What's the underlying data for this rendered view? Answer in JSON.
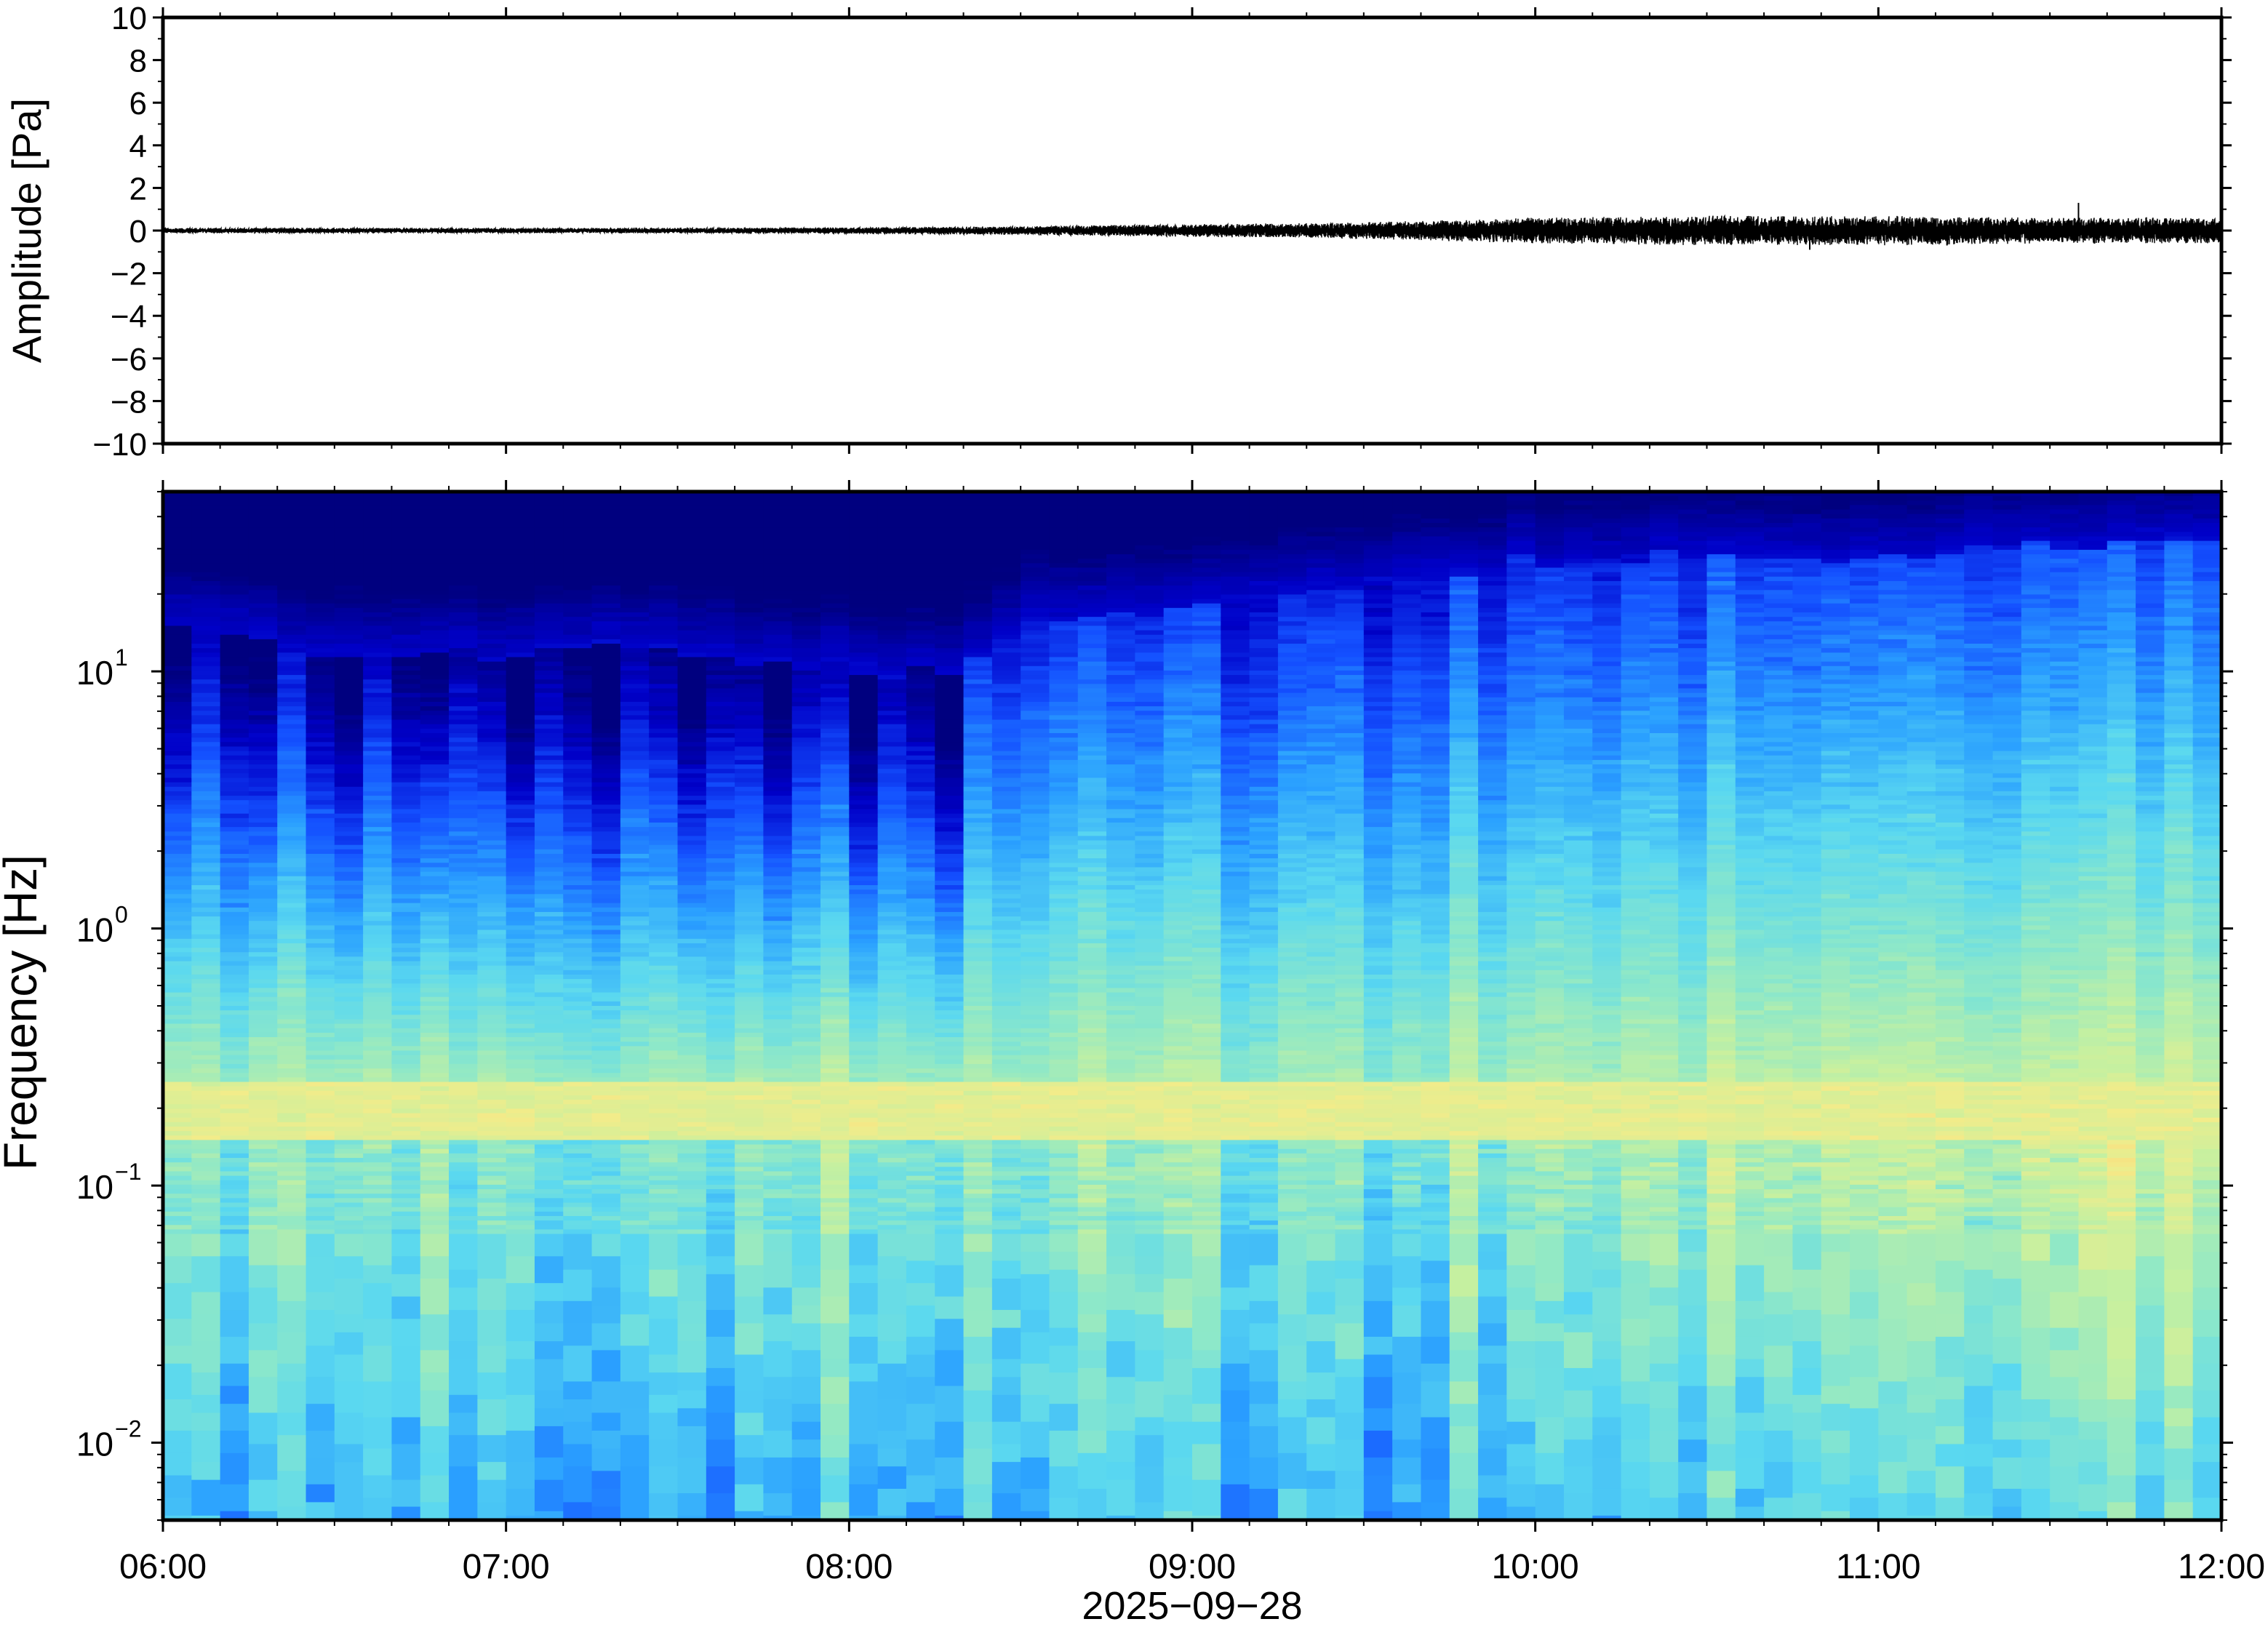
{
  "chart_data": [
    {
      "type": "line",
      "name": "waveform",
      "ylabel": "Amplitude [Pa]",
      "ylim": [
        -10,
        10
      ],
      "yticks": [
        10,
        8,
        6,
        4,
        2,
        0,
        -2,
        -4,
        -6,
        -8,
        -10
      ],
      "ytick_labels": [
        "10",
        "8",
        "6",
        "4",
        "2",
        "0",
        "−2",
        "−4",
        "−6",
        "−8",
        "−10"
      ],
      "x_range": [
        "06:00",
        "12:00"
      ],
      "series": [
        {
          "color": "#000000",
          "envelope": {
            "time_hours": [
              6.0,
              6.5,
              7.0,
              7.5,
              8.0,
              8.5,
              8.75,
              9.0,
              9.35,
              9.5,
              9.75,
              10.0,
              10.5,
              11.0,
              11.5,
              12.0
            ],
            "half_amplitude_pa": [
              0.12,
              0.12,
              0.12,
              0.12,
              0.15,
              0.2,
              0.25,
              0.3,
              0.35,
              0.4,
              0.5,
              0.6,
              0.7,
              0.7,
              0.6,
              0.6
            ]
          },
          "spikes": [
            {
              "time": "11:35",
              "value": 1.3
            },
            {
              "time": "10:48",
              "value": -0.9
            },
            {
              "time": "11:12",
              "value": -0.7
            }
          ]
        }
      ],
      "grid": false
    },
    {
      "type": "heatmap",
      "name": "spectrogram",
      "ylabel": "Frequency [Hz]",
      "xlabel": "2025−09−28",
      "y_scale": "log",
      "ylim": [
        0.005,
        50
      ],
      "yticks": [
        0.01,
        0.1,
        1,
        10
      ],
      "ytick_labels": [
        {
          "base": "10",
          "exp": "−2"
        },
        {
          "base": "10",
          "exp": "−1"
        },
        {
          "base": "10",
          "exp": "0"
        },
        {
          "base": "10",
          "exp": "1"
        }
      ],
      "xticks": [
        "06:00",
        "07:00",
        "08:00",
        "09:00",
        "10:00",
        "11:00",
        "12:00"
      ],
      "colormap": "jet-like: dark blue (low) → blue → cyan → yellow → orange (high)",
      "colors": [
        "#00007f",
        "#0000c8",
        "#1450ff",
        "#2aa0ff",
        "#5ad8f0",
        "#8ee8c8",
        "#c6f0a0",
        "#f2ec8a",
        "#ffc872",
        "#ffa060"
      ],
      "features": {
        "low_power_cutoff_hz_by_hour": {
          "time_hours": [
            6.0,
            6.5,
            7.0,
            7.5,
            8.0,
            8.3,
            8.5,
            9.0,
            9.5,
            10.0,
            10.5,
            11.0,
            11.5,
            12.0
          ],
          "cutoff_hz": [
            15,
            12,
            12,
            12,
            10,
            10,
            15,
            18,
            22,
            26,
            28,
            28,
            30,
            32
          ]
        },
        "microbarom_band_hz": [
          0.15,
          0.25
        ],
        "elevated_low_freq_after": "09:45"
      },
      "grid": false
    }
  ],
  "colors": {
    "frame": "#000000",
    "background": "#ffffff"
  }
}
